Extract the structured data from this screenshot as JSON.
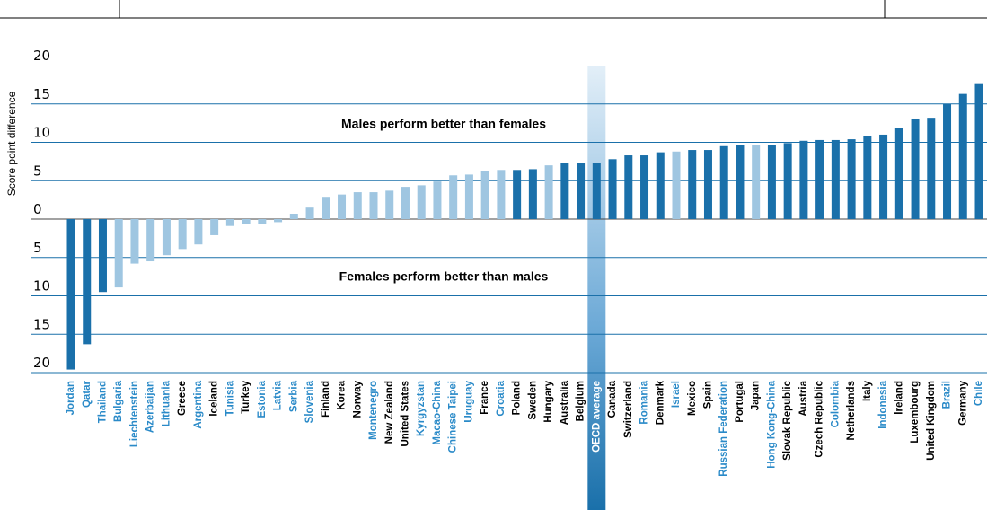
{
  "chart_data": {
    "type": "bar",
    "y_axis_label": "Score point difference",
    "annotations": [
      "Males perform better than females",
      "Females perform better than males"
    ],
    "categories": [
      "Jordan",
      "Qatar",
      "Thailand",
      "Bulgaria",
      "Liechtenstein",
      "Azerbaijan",
      "Lithuania",
      "Greece",
      "Argentina",
      "Iceland",
      "Tunisia",
      "Turkey",
      "Estonia",
      "Latvia",
      "Serbia",
      "Slovenia",
      "Finland",
      "Korea",
      "Norway",
      "Montenegro",
      "New Zealand",
      "United States",
      "Kyrgyzstan",
      "Macao-China",
      "Chinese Taipei",
      "Uruguay",
      "France",
      "Croatia",
      "Poland",
      "Sweden",
      "Hungary",
      "Australia",
      "Belgium",
      "OECD average",
      "Canada",
      "Switzerland",
      "Romania",
      "Denmark",
      "Israel",
      "Mexico",
      "Spain",
      "Russian Federation",
      "Portugal",
      "Japan",
      "Hong Kong-China",
      "Slovak Republic",
      "Austria",
      "Czech Republic",
      "Colombia",
      "Netherlands",
      "Italy",
      "Indonesia",
      "Ireland",
      "Luxembourg",
      "United Kingdom",
      "Brazil",
      "Germany",
      "Chile"
    ],
    "values": [
      -19.6,
      -16.3,
      -9.5,
      -8.9,
      -5.8,
      -5.5,
      -4.7,
      -3.9,
      -3.3,
      -2.1,
      -0.9,
      -0.6,
      -0.6,
      -0.4,
      0.7,
      1.5,
      2.9,
      3.2,
      3.5,
      3.5,
      3.7,
      4.2,
      4.4,
      4.9,
      5.7,
      5.8,
      6.2,
      6.4,
      6.4,
      6.5,
      7.0,
      7.3,
      7.3,
      7.3,
      7.8,
      8.3,
      8.3,
      8.7,
      8.8,
      9.0,
      9.0,
      9.5,
      9.6,
      9.6,
      9.6,
      9.9,
      10.2,
      10.3,
      10.3,
      10.4,
      10.8,
      11.0,
      11.9,
      13.1,
      13.2,
      15.0,
      16.3,
      17.7
    ],
    "colors": [
      "#1a70aa",
      "#1a70aa",
      "#1a70aa",
      "#9fc6e1",
      "#9fc6e1",
      "#9fc6e1",
      "#9fc6e1",
      "#9fc6e1",
      "#9fc6e1",
      "#9fc6e1",
      "#9fc6e1",
      "#9fc6e1",
      "#9fc6e1",
      "#9fc6e1",
      "#9fc6e1",
      "#9fc6e1",
      "#9fc6e1",
      "#9fc6e1",
      "#9fc6e1",
      "#9fc6e1",
      "#9fc6e1",
      "#9fc6e1",
      "#9fc6e1",
      "#9fc6e1",
      "#9fc6e1",
      "#9fc6e1",
      "#9fc6e1",
      "#9fc6e1",
      "#1a70aa",
      "#1a70aa",
      "#9fc6e1",
      "#1a70aa",
      "#1a70aa",
      "#1a70aa",
      "#1a70aa",
      "#1a70aa",
      "#1a70aa",
      "#1a70aa",
      "#9fc6e1",
      "#1a70aa",
      "#1a70aa",
      "#1a70aa",
      "#1a70aa",
      "#9fc6e1",
      "#1a70aa",
      "#1a70aa",
      "#1a70aa",
      "#1a70aa",
      "#1a70aa",
      "#1a70aa",
      "#1a70aa",
      "#1a70aa",
      "#1a70aa",
      "#1a70aa",
      "#1a70aa",
      "#1a70aa",
      "#1a70aa",
      "#1a70aa"
    ],
    "label_colors": [
      "#2a8ac8",
      "#2a8ac8",
      "#2a8ac8",
      "#2a8ac8",
      "#2a8ac8",
      "#2a8ac8",
      "#2a8ac8",
      "#000",
      "#2a8ac8",
      "#000",
      "#2a8ac8",
      "#000",
      "#2a8ac8",
      "#2a8ac8",
      "#2a8ac8",
      "#2a8ac8",
      "#000",
      "#000",
      "#000",
      "#2a8ac8",
      "#000",
      "#000",
      "#2a8ac8",
      "#2a8ac8",
      "#2a8ac8",
      "#2a8ac8",
      "#000",
      "#2a8ac8",
      "#000",
      "#000",
      "#000",
      "#000",
      "#000",
      "#fff",
      "#000",
      "#000",
      "#2a8ac8",
      "#000",
      "#2a8ac8",
      "#000",
      "#000",
      "#2a8ac8",
      "#000",
      "#000",
      "#2a8ac8",
      "#000",
      "#000",
      "#000",
      "#2a8ac8",
      "#000",
      "#000",
      "#2a8ac8",
      "#000",
      "#000",
      "#000",
      "#2a8ac8",
      "#000",
      "#2a8ac8"
    ],
    "highlight": "OECD average",
    "ylim": [
      -20,
      20
    ],
    "yticks": [
      {
        "value": -20,
        "label": "20"
      },
      {
        "value": -15,
        "label": "15"
      },
      {
        "value": -10,
        "label": "10"
      },
      {
        "value": -5,
        "label": "5"
      },
      0,
      5,
      10,
      15,
      20
    ],
    "grid": true
  }
}
